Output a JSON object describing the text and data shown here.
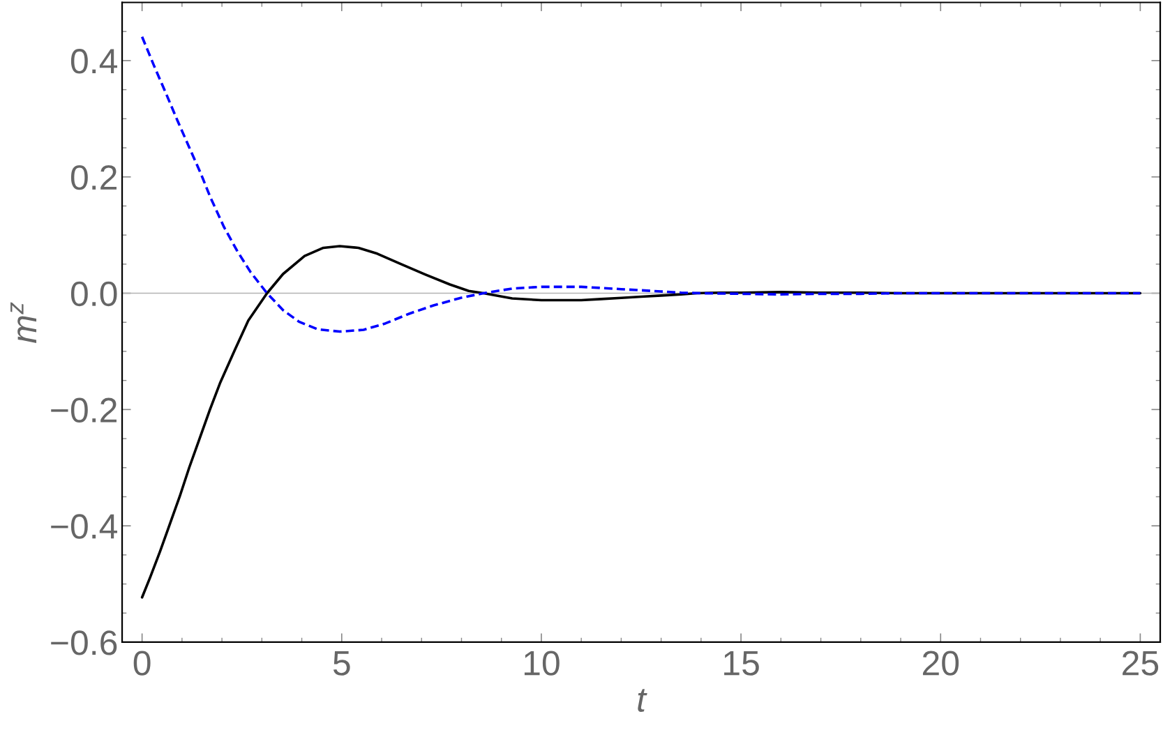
{
  "chart_data": {
    "type": "line",
    "xlabel": "t",
    "ylabel": "m$^{z}$",
    "xlim": [
      -0.5,
      25.5
    ],
    "ylim": [
      -0.6,
      0.5
    ],
    "xticks": [
      0,
      {
        "value": 1,
        "label": null
      },
      {
        "value": 2,
        "label": null
      },
      {
        "value": 3,
        "label": null
      },
      {
        "value": 4,
        "label": null
      },
      5,
      {
        "value": 6,
        "label": null
      },
      {
        "value": 7,
        "label": null
      },
      {
        "value": 8,
        "label": null
      },
      {
        "value": 9,
        "label": null
      },
      10,
      {
        "value": 11,
        "label": null
      },
      {
        "value": 12,
        "label": null
      },
      {
        "value": 13,
        "label": null
      },
      {
        "value": 14,
        "label": null
      },
      15,
      {
        "value": 16,
        "label": null
      },
      {
        "value": 17,
        "label": null
      },
      {
        "value": 18,
        "label": null
      },
      {
        "value": 19,
        "label": null
      },
      20,
      {
        "value": 21,
        "label": null
      },
      {
        "value": 22,
        "label": null
      },
      {
        "value": 23,
        "label": null
      },
      {
        "value": 24,
        "label": null
      },
      25
    ],
    "yticks": [
      {
        "value": -0.6,
        "label": "−0.6"
      },
      {
        "value": -0.55,
        "label": null
      },
      {
        "value": -0.5,
        "label": null
      },
      {
        "value": -0.45,
        "label": null
      },
      {
        "value": -0.4,
        "label": "−0.4"
      },
      {
        "value": -0.35,
        "label": null
      },
      {
        "value": -0.3,
        "label": null
      },
      {
        "value": -0.25,
        "label": null
      },
      {
        "value": -0.2,
        "label": "−0.2"
      },
      {
        "value": -0.15,
        "label": null
      },
      {
        "value": -0.1,
        "label": null
      },
      {
        "value": -0.05,
        "label": null
      },
      {
        "value": 0,
        "label": "0.0"
      },
      {
        "value": 0.05,
        "label": null
      },
      {
        "value": 0.1,
        "label": null
      },
      {
        "value": 0.15,
        "label": null
      },
      0.2,
      {
        "value": 0.25,
        "label": null
      },
      {
        "value": 0.3,
        "label": null
      },
      {
        "value": 0.35,
        "label": null
      },
      0.4,
      {
        "value": 0.45,
        "label": null
      }
    ],
    "ref_lines": [
      {
        "axis": "y",
        "value": 0,
        "color": "#b3b3b3"
      }
    ],
    "series": [
      {
        "color": "#000000",
        "line_style": "solid",
        "x": [
          0,
          0.2,
          0.45,
          0.68,
          0.94,
          1.18,
          1.44,
          1.7,
          1.95,
          2.32,
          2.66,
          3.13,
          3.53,
          4.07,
          4.54,
          4.95,
          5.42,
          5.89,
          6.49,
          7.1,
          7.71,
          8.18,
          8.55,
          9.27,
          10,
          10.5,
          11,
          11.5,
          12,
          12.5,
          13,
          13.5,
          13.9,
          14.5,
          15,
          16,
          17,
          18,
          19,
          20,
          22,
          25
        ],
        "values": [
          -0.523,
          -0.489,
          -0.444,
          -0.4,
          -0.35,
          -0.3,
          -0.25,
          -0.2,
          -0.155,
          -0.098,
          -0.047,
          0,
          0.033,
          0.064,
          0.078,
          0.081,
          0.078,
          0.068,
          0.05,
          0.032,
          0.015,
          0.004,
          0,
          -0.009,
          -0.012,
          -0.012,
          -0.012,
          -0.01,
          -0.008,
          -0.006,
          -0.004,
          -0.002,
          0,
          0.001,
          0.001,
          0.002,
          0.001,
          0.001,
          0,
          0,
          0,
          0
        ]
      },
      {
        "color": "#0000ff",
        "line_style": "dashed",
        "x": [
          0,
          0.3,
          0.59,
          0.885,
          1.18,
          1.47,
          1.71,
          2.05,
          2.38,
          2.72,
          3.13,
          3.53,
          3.93,
          4.4,
          4.95,
          5.55,
          6.09,
          6.7,
          7.3,
          7.98,
          8.55,
          9.27,
          10,
          10.5,
          11,
          11.5,
          12,
          12.5,
          13,
          13.5,
          14,
          15,
          16,
          17,
          18,
          19,
          20,
          22,
          25
        ],
        "values": [
          0.441,
          0.391,
          0.345,
          0.297,
          0.251,
          0.206,
          0.165,
          0.114,
          0.073,
          0.036,
          0,
          -0.029,
          -0.049,
          -0.062,
          -0.066,
          -0.063,
          -0.052,
          -0.035,
          -0.021,
          -0.008,
          0,
          0.008,
          0.011,
          0.011,
          0.011,
          0.009,
          0.007,
          0.005,
          0.003,
          0.001,
          0,
          -0.001,
          -0.002,
          -0.001,
          -0.001,
          0,
          0,
          0,
          0
        ]
      }
    ]
  }
}
